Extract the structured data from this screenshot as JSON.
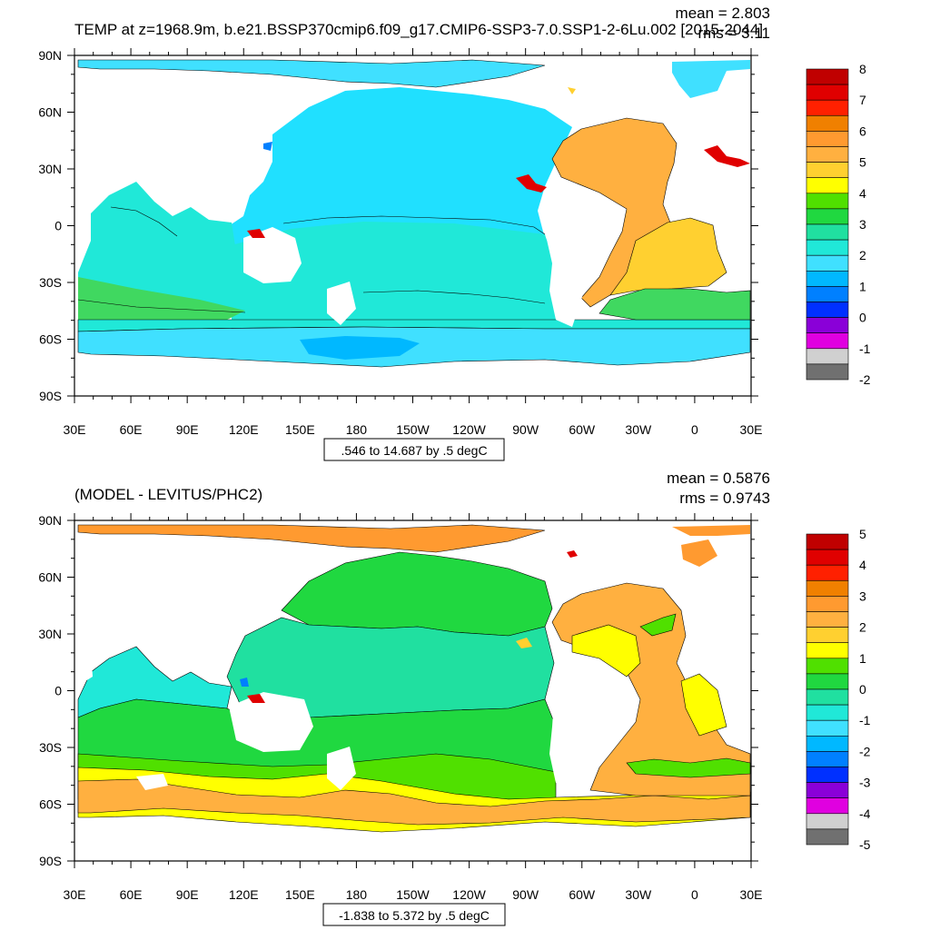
{
  "panels": [
    {
      "title": "TEMP at z=1968.9m, b.e21.BSSP370cmip6.f09_g17.CMIP6-SSP3-7.0.SSP1-2-6Lu.002 [2015-2044]",
      "mean": "mean = 2.803",
      "rms": "rms = 3.11",
      "contour_info": ".546 to 14.687 by .5 degC",
      "lat_labels": [
        "90N",
        "60N",
        "30N",
        "0",
        "30S",
        "60S",
        "90S"
      ],
      "lon_labels": [
        "30E",
        "60E",
        "90E",
        "120E",
        "150E",
        "180",
        "150W",
        "120W",
        "90W",
        "60W",
        "30W",
        "0",
        "30E"
      ],
      "colorbar": {
        "labels": [
          "8",
          "7",
          "6",
          "5",
          "4",
          "3",
          "2",
          "1",
          "0",
          "-1",
          "-2"
        ],
        "colors": [
          "#c00000",
          "#e00000",
          "#ff2000",
          "#f08000",
          "#ff9a30",
          "#ffb040",
          "#ffd030",
          "#ffff00",
          "#50e000",
          "#20d840",
          "#20e0a0",
          "#20e8d8",
          "#40e0ff",
          "#00b8ff",
          "#0080ff",
          "#0030ff",
          "#8a00d8",
          "#e000e0",
          "#d0d0d0",
          "#707070"
        ]
      }
    },
    {
      "title": "(MODEL - LEVITUS/PHC2)",
      "mean": "mean = 0.5876",
      "rms": "rms = 0.9743",
      "contour_info": "-1.838 to 5.372 by .5 degC",
      "lat_labels": [
        "90N",
        "60N",
        "30N",
        "0",
        "30S",
        "60S",
        "90S"
      ],
      "lon_labels": [
        "30E",
        "60E",
        "90E",
        "120E",
        "150E",
        "180",
        "150W",
        "120W",
        "90W",
        "60W",
        "30W",
        "0",
        "30E"
      ],
      "colorbar": {
        "labels": [
          "5",
          "4",
          "3",
          "2",
          "1",
          "0",
          "-1",
          "-2",
          "-3",
          "-4",
          "-5"
        ],
        "colors": [
          "#c00000",
          "#e00000",
          "#ff2000",
          "#f08000",
          "#ff9a30",
          "#ffb040",
          "#ffd030",
          "#ffff00",
          "#50e000",
          "#20d840",
          "#20e0a0",
          "#20e8d8",
          "#40e0ff",
          "#00b8ff",
          "#0080ff",
          "#0030ff",
          "#8a00d8",
          "#e000e0",
          "#d0d0d0",
          "#707070"
        ]
      }
    }
  ],
  "map_colors": {
    "p1_pacific": "#20e0ff",
    "p1_southern": "#20e8d8",
    "p1_acc_band": "#40d860",
    "p1_deep_south": "#40e0ff",
    "p1_atlantic": "#ffb040",
    "p1_atlantic_south": "#ffd030",
    "p1_hot": "#e00000",
    "p1_arctic": "#40e0ff",
    "p2_pacific_north": "#20e0a0",
    "p2_pacific_mid": "#20e8d8",
    "p2_pacific_south": "#40e0ff",
    "p2_south": "#20d840",
    "p2_south_band": "#50e000",
    "p2_southern_yellow": "#ffff00",
    "p2_southern_orange": "#ffb040",
    "p2_atlantic": "#ffb040",
    "p2_atlantic_yellow": "#ffff00",
    "p2_arctic": "#ff9a30"
  }
}
